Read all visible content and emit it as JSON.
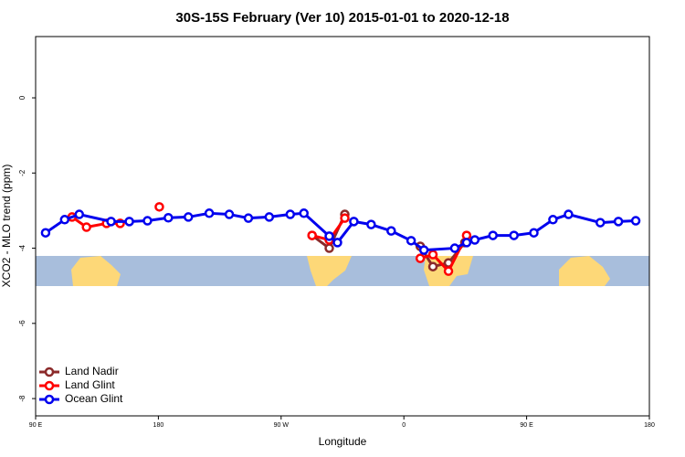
{
  "chart_data": {
    "type": "line",
    "title": "30S-15S February (Ver 10)   2015-01-01 to 2020-12-18",
    "xlabel": "Longitude",
    "ylabel": "XCO2 - MLO trend (ppm)",
    "xlim": [
      90,
      540
    ],
    "xticks": [
      {
        "value": 90,
        "label": "90 E"
      },
      180,
      {
        "value": 270,
        "label": "90 W"
      },
      {
        "value": 360,
        "label": "0"
      },
      {
        "value": 450,
        "label": "90 E"
      },
      {
        "value": 540,
        "label": "180"
      }
    ],
    "ylim": [
      -8.46,
      1.63
    ],
    "yticks": [
      0,
      -2,
      -4,
      -6,
      -8
    ],
    "legend": "bottom-left",
    "series": [
      {
        "name": "Land Nadir",
        "color": "#8b2a2a",
        "x": [
          292.7,
          305.3,
          316.7,
          null,
          372,
          381.3,
          392.7,
          404.7
        ],
        "values": [
          -3.66,
          -4.0,
          -3.1,
          null,
          -3.95,
          -4.49,
          -4.39,
          -3.85
        ]
      },
      {
        "name": "Land Glint",
        "color": "#ff0000",
        "x": [
          116.7,
          127.3,
          142,
          152,
          null,
          180.7,
          null,
          292.7,
          305.3,
          316.7,
          null,
          372,
          381.3,
          392.7,
          406
        ],
        "values": [
          -3.17,
          -3.44,
          -3.34,
          -3.34,
          null,
          -2.9,
          null,
          -3.66,
          -3.78,
          -3.2,
          null,
          -4.27,
          -4.17,
          -4.61,
          -3.66
        ]
      },
      {
        "name": "Ocean Glint",
        "color": "#0000ee",
        "x": [
          97.3,
          111.3,
          122,
          145.3,
          158.7,
          172,
          187.3,
          202,
          217.3,
          232,
          246,
          261.3,
          276.7,
          286.7,
          305.3,
          311.3,
          323.3,
          336,
          350.7,
          365.3,
          374.7,
          397.3,
          406,
          412,
          425.3,
          440.7,
          455.3,
          469.3,
          480.7,
          504,
          517.3,
          530
        ],
        "values": [
          -3.59,
          -3.24,
          -3.1,
          -3.29,
          -3.29,
          -3.27,
          -3.19,
          -3.17,
          -3.07,
          -3.1,
          -3.2,
          -3.17,
          -3.1,
          -3.07,
          -3.68,
          -3.85,
          -3.29,
          -3.37,
          -3.54,
          -3.8,
          -4.05,
          -4.0,
          -3.85,
          -3.78,
          -3.66,
          -3.66,
          -3.59,
          -3.24,
          -3.1,
          -3.32,
          -3.29,
          -3.27
        ]
      }
    ]
  }
}
